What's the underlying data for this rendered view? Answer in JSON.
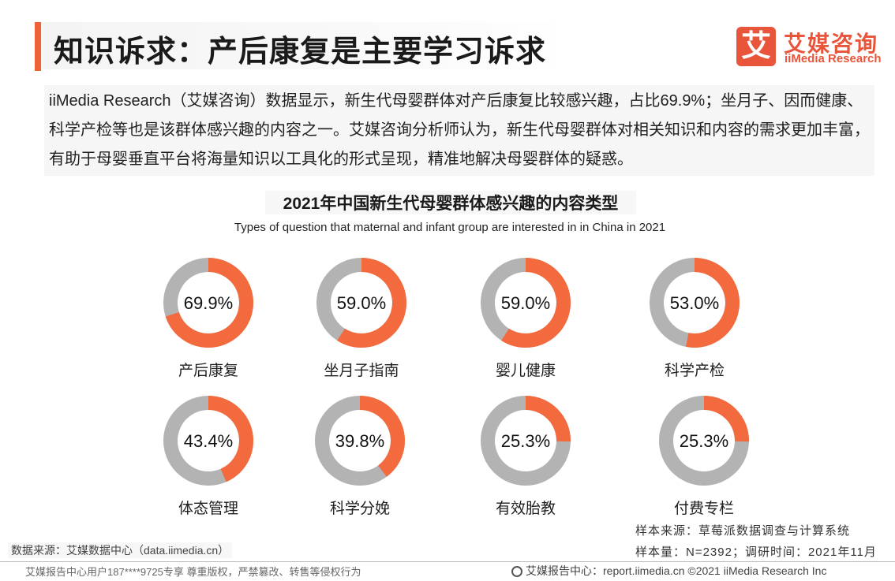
{
  "header": {
    "title": "知识诉求：产后康复是主要学习诉求",
    "logo_mark": "艾",
    "logo_cn": "艾媒咨询",
    "logo_en": "iiMedia Research"
  },
  "intro": "iiMedia Research（艾媒咨询）数据显示，新生代母婴群体对产后康复比较感兴趣，占比69.9%；坐月子、因而健康、科学产检等也是该群体感兴趣的内容之一。艾媒咨询分析师认为，新生代母婴群体对相关知识和内容的需求更加丰富，有助于母婴垂直平台将海量知识以工具化的形式呈现，精准地解决母婴群体的疑惑。",
  "chart_data": {
    "type": "pie",
    "title": "2021年中国新生代母婴群体感兴趣的内容类型",
    "subtitle": "Types of question that maternal and infant group are interested in in China in 2021",
    "unit": "%",
    "categories": [
      "产后康复",
      "坐月子指南",
      "婴儿健康",
      "科学产检",
      "体态管理",
      "科学分娩",
      "有效胎教",
      "付费专栏"
    ],
    "values": [
      69.9,
      59.0,
      59.0,
      53.0,
      43.4,
      39.8,
      25.3,
      25.3
    ],
    "value_labels": [
      "69.9%",
      "59.0%",
      "59.0%",
      "53.0%",
      "43.4%",
      "39.8%",
      "25.3%",
      "25.3%"
    ],
    "colors": {
      "value": "#f26a3d",
      "rest": "#b3b3b3"
    }
  },
  "sources": {
    "sample_source": "样本来源：草莓派数据调查与计算系统",
    "sample_size": "样本量：N=2392；调研时间：2021年11月",
    "data_source": "数据来源：艾媒数据中心（data.iimedia.cn）"
  },
  "footer": {
    "left": "艾媒报告中心用户187****9725专享 尊重版权，严禁篡改、转售等侵权行为",
    "right": "艾媒报告中心：report.iimedia.cn  ©2021  iiMedia Research  Inc"
  }
}
